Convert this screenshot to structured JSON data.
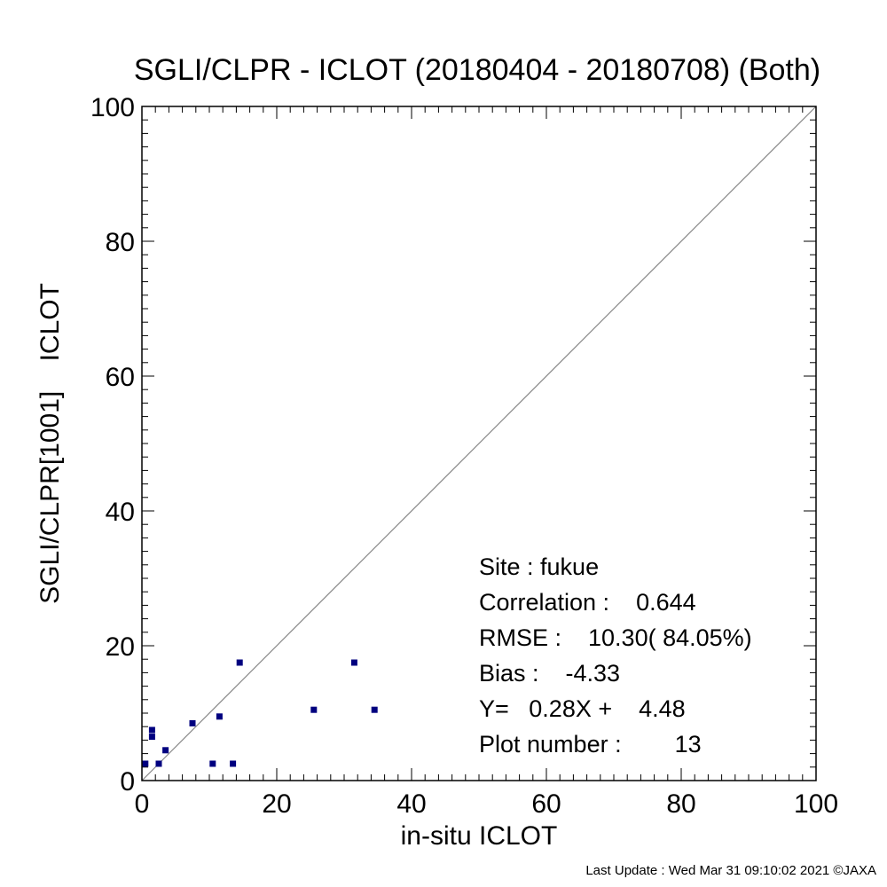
{
  "chart_data": {
    "type": "scatter",
    "title": "SGLI/CLPR - ICLOT (20180404 - 20180708) (Both)",
    "xlabel": "in-situ ICLOT",
    "ylabel": "SGLI/CLPR[1001]    ICLOT",
    "xlim": [
      0,
      100
    ],
    "ylim": [
      0,
      100
    ],
    "xticks": [
      "0",
      "20",
      "40",
      "60",
      "80",
      "100"
    ],
    "yticks": [
      "0",
      "20",
      "40",
      "60",
      "80",
      "100"
    ],
    "grid": false,
    "reference_line": "1:1",
    "marker_color": "#00007f",
    "points": [
      {
        "x": 0.5,
        "y": 2.5
      },
      {
        "x": 1.5,
        "y": 6.5
      },
      {
        "x": 1.5,
        "y": 7.5
      },
      {
        "x": 2.5,
        "y": 2.5
      },
      {
        "x": 3.5,
        "y": 4.5
      },
      {
        "x": 7.5,
        "y": 8.5
      },
      {
        "x": 10.5,
        "y": 2.5
      },
      {
        "x": 11.5,
        "y": 9.5
      },
      {
        "x": 13.5,
        "y": 2.5
      },
      {
        "x": 14.5,
        "y": 17.5
      },
      {
        "x": 25.5,
        "y": 10.5
      },
      {
        "x": 31.5,
        "y": 17.5
      },
      {
        "x": 34.5,
        "y": 10.5
      }
    ]
  },
  "stats": {
    "site": "Site : fukue",
    "correlation": "Correlation :    0.644",
    "rmse": "RMSE :    10.30( 84.05%)",
    "bias": "Bias :    -4.33",
    "regression": "Y=   0.28X +    4.48",
    "plot_number": "Plot number :        13"
  },
  "footer": "Last Update : Wed Mar 31 09:10:02 2021  ©JAXA"
}
